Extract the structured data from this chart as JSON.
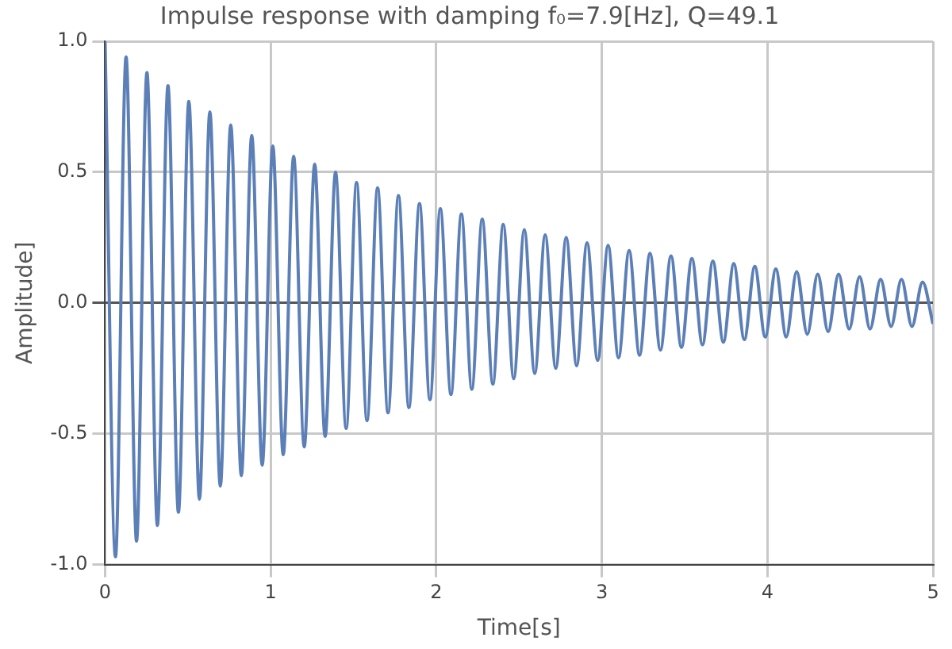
{
  "chart_data": {
    "type": "line",
    "title": "Impulse response with damping f₀=7.9[Hz], Q=49.1",
    "xlabel": "Time[s]",
    "ylabel": "Amplitude]",
    "x": [
      0,
      0.063,
      0.127,
      0.19,
      0.253,
      0.316,
      0.38,
      0.443,
      0.506,
      0.57,
      0.633,
      0.696,
      0.759,
      0.823,
      0.886,
      0.949,
      1.013,
      1.076,
      1.139,
      1.203,
      1.266,
      1.329,
      1.392,
      1.456,
      1.519,
      1.582,
      1.646,
      1.709,
      1.772,
      1.835,
      1.899,
      1.962,
      2.025,
      2.089,
      2.152,
      2.215,
      2.278,
      2.342,
      2.405,
      2.468,
      2.532,
      2.595,
      2.658,
      2.722,
      2.785,
      2.848,
      2.911,
      2.975,
      3.038,
      3.101,
      3.165,
      3.228,
      3.291,
      3.354,
      3.418,
      3.481,
      3.544,
      3.608,
      3.671,
      3.734,
      3.797,
      3.861,
      3.924,
      3.987,
      4.051,
      4.114,
      4.177,
      4.241,
      4.304,
      4.367,
      4.43,
      4.494,
      4.557,
      4.62,
      4.684,
      4.747,
      4.81,
      4.873,
      4.937,
      5.0
    ],
    "series": [
      {
        "color": "#5b7fb6",
        "values": [
          1.0,
          -0.97,
          0.94,
          -0.91,
          0.88,
          -0.85,
          0.83,
          -0.8,
          0.77,
          -0.75,
          0.73,
          -0.7,
          0.68,
          -0.66,
          0.64,
          -0.62,
          0.6,
          -0.58,
          0.56,
          -0.55,
          0.53,
          -0.51,
          0.5,
          -0.48,
          0.46,
          -0.45,
          0.44,
          -0.42,
          0.41,
          -0.4,
          0.38,
          -0.37,
          0.36,
          -0.35,
          0.34,
          -0.33,
          0.32,
          -0.31,
          0.3,
          -0.29,
          0.28,
          -0.27,
          0.26,
          -0.25,
          0.25,
          -0.24,
          0.23,
          -0.22,
          0.22,
          -0.21,
          0.2,
          -0.2,
          0.19,
          -0.18,
          0.18,
          -0.17,
          0.17,
          -0.16,
          0.16,
          -0.15,
          0.15,
          -0.14,
          0.14,
          -0.13,
          0.13,
          -0.13,
          0.12,
          -0.12,
          0.11,
          -0.11,
          0.11,
          -0.1,
          0.1,
          -0.1,
          0.09,
          -0.09,
          0.09,
          -0.09,
          0.08,
          -0.08
        ]
      }
    ],
    "xlim": [
      0,
      5
    ],
    "ylim": [
      -1,
      1
    ],
    "xticks": [
      0,
      1,
      2,
      3,
      4,
      5
    ],
    "yticks": [
      {
        "value": -1,
        "label": "-1.0"
      },
      {
        "value": -0.5,
        "label": "-0.5"
      },
      {
        "value": 0,
        "label": "0.0"
      },
      {
        "value": 0.5,
        "label": "0.5"
      },
      {
        "value": 1,
        "label": "1.0"
      }
    ],
    "grid": true,
    "legend": false,
    "marker": "none",
    "line_style": "solid"
  }
}
